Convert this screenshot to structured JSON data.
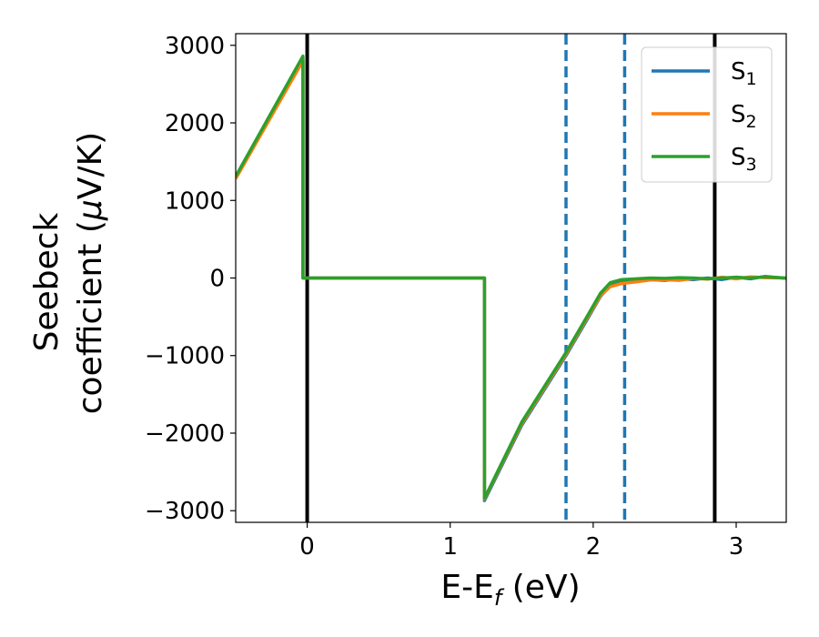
{
  "chart_data": {
    "type": "line",
    "xlabel": {
      "prefix": "E-E",
      "sub": "f",
      "suffix": " (eV)"
    },
    "ylabel": {
      "line1": "Seebeck",
      "line2_prefix": "coefficient  (",
      "line2_mu": "μ",
      "line2_suffix": "V/K)"
    },
    "xlim": [
      -0.5,
      3.35
    ],
    "ylim": [
      -3150,
      3150
    ],
    "xticks": [
      0,
      1,
      2,
      3
    ],
    "xtick_labels": [
      "0",
      "1",
      "2",
      "3"
    ],
    "yticks": [
      -3000,
      -2000,
      -1000,
      0,
      1000,
      2000,
      3000
    ],
    "ytick_labels": [
      "−3000",
      "−2000",
      "−1000",
      "0",
      "1000",
      "2000",
      "3000"
    ],
    "grid": false,
    "legend_position": "top-right",
    "vlines": [
      {
        "x": 0.0,
        "style": "solid",
        "color": "#000000"
      },
      {
        "x": 2.85,
        "style": "solid",
        "color": "#000000"
      },
      {
        "x": 1.81,
        "style": "dashed",
        "color": "#1f77b4"
      },
      {
        "x": 2.22,
        "style": "dashed",
        "color": "#1f77b4"
      }
    ],
    "series": [
      {
        "name": "S",
        "sub": "1",
        "color": "#1f77b4",
        "x": [
          -0.5,
          -0.03,
          -0.03,
          1.24,
          1.24,
          1.5,
          1.81,
          1.95,
          2.05,
          2.12,
          2.2,
          2.3,
          2.4,
          2.5,
          2.6,
          2.7,
          2.8,
          2.9,
          3.0,
          3.1,
          3.2,
          3.35
        ],
        "y": [
          1300,
          2820,
          0,
          0,
          -2870,
          -1900,
          -1000,
          -560,
          -240,
          -90,
          -50,
          -35,
          -20,
          -30,
          -10,
          -20,
          0,
          -20,
          10,
          -10,
          20,
          -5
        ]
      },
      {
        "name": "S",
        "sub": "2",
        "color": "#ff7f0e",
        "x": [
          -0.5,
          -0.03,
          -0.03,
          1.24,
          1.24,
          1.5,
          1.81,
          1.95,
          2.05,
          2.12,
          2.2,
          2.3,
          2.4,
          2.5,
          2.6,
          2.7,
          2.8,
          2.9,
          3.0,
          3.1,
          3.2,
          3.35
        ],
        "y": [
          1280,
          2800,
          0,
          0,
          -2850,
          -1880,
          -980,
          -540,
          -230,
          -110,
          -70,
          -50,
          -25,
          -20,
          -30,
          -5,
          -15,
          10,
          -10,
          15,
          5,
          0
        ]
      },
      {
        "name": "S",
        "sub": "3",
        "color": "#2ca02c",
        "x": [
          -0.5,
          -0.03,
          -0.03,
          1.24,
          1.24,
          1.5,
          1.81,
          1.95,
          2.05,
          2.12,
          2.2,
          2.3,
          2.4,
          2.5,
          2.6,
          2.7,
          2.8,
          2.9,
          3.0,
          3.1,
          3.2,
          3.35
        ],
        "y": [
          1310,
          2860,
          0,
          0,
          -2840,
          -1860,
          -960,
          -520,
          -200,
          -60,
          -20,
          -10,
          0,
          -5,
          5,
          0,
          -10,
          0,
          10,
          0,
          15,
          0
        ]
      }
    ]
  }
}
